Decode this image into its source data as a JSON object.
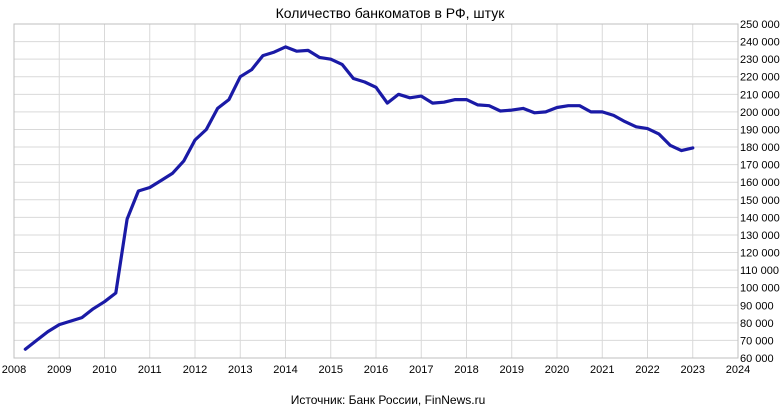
{
  "chart_data": {
    "type": "line",
    "title": "Количество банкоматов в РФ, штук",
    "source": "Источник: Банк России, FinNews.ru",
    "xlabel": "",
    "ylabel": "",
    "xlim": [
      2008,
      2024
    ],
    "ylim": [
      60000,
      250000
    ],
    "grid": true,
    "legend": "none",
    "y_axis_side": "right",
    "x_ticks": [
      "2008",
      "2009",
      "2010",
      "2011",
      "2012",
      "2013",
      "2014",
      "2015",
      "2016",
      "2017",
      "2018",
      "2019",
      "2020",
      "2021",
      "2022",
      "2023",
      "2024"
    ],
    "y_ticks": [
      "60 000",
      "70 000",
      "80 000",
      "90 000",
      "100 000",
      "110 000",
      "120 000",
      "130 000",
      "140 000",
      "150 000",
      "160 000",
      "170 000",
      "180 000",
      "190 000",
      "200 000",
      "210 000",
      "220 000",
      "230 000",
      "240 000",
      "250 000"
    ],
    "line_color": "#1a1aa6",
    "series": [
      {
        "x": [
          2008.25,
          2008.5,
          2008.75,
          2009.0,
          2009.25,
          2009.5,
          2009.75,
          2010.0,
          2010.25,
          2010.5,
          2010.75,
          2011.0,
          2011.25,
          2011.5,
          2011.75,
          2012.0,
          2012.25,
          2012.5,
          2012.75,
          2013.0,
          2013.25,
          2013.5,
          2013.75,
          2014.0,
          2014.25,
          2014.5,
          2014.75,
          2015.0,
          2015.25,
          2015.5,
          2015.75,
          2016.0,
          2016.25,
          2016.5,
          2016.75,
          2017.0,
          2017.25,
          2017.5,
          2017.75,
          2018.0,
          2018.25,
          2018.5,
          2018.75,
          2019.0,
          2019.25,
          2019.5,
          2019.75,
          2020.0,
          2020.25,
          2020.5,
          2020.75,
          2021.0,
          2021.25,
          2021.5,
          2021.75,
          2022.0,
          2022.25,
          2022.5,
          2022.75,
          2023.0
        ],
        "values": [
          65000,
          70000,
          75000,
          79000,
          81000,
          83000,
          88000,
          92000,
          97000,
          139000,
          155000,
          157000,
          161000,
          165000,
          172000,
          184000,
          190000,
          202000,
          207000,
          220000,
          224000,
          232000,
          234000,
          237000,
          234500,
          235000,
          231000,
          230000,
          227000,
          219000,
          217000,
          214000,
          205000,
          210000,
          208000,
          209000,
          205000,
          205500,
          207000,
          207000,
          204000,
          203500,
          200500,
          201000,
          202000,
          199500,
          200000,
          202500,
          203500,
          203500,
          200000,
          200000,
          198000,
          194500,
          191500,
          190500,
          187500,
          181000,
          178000,
          179500
        ]
      }
    ]
  }
}
